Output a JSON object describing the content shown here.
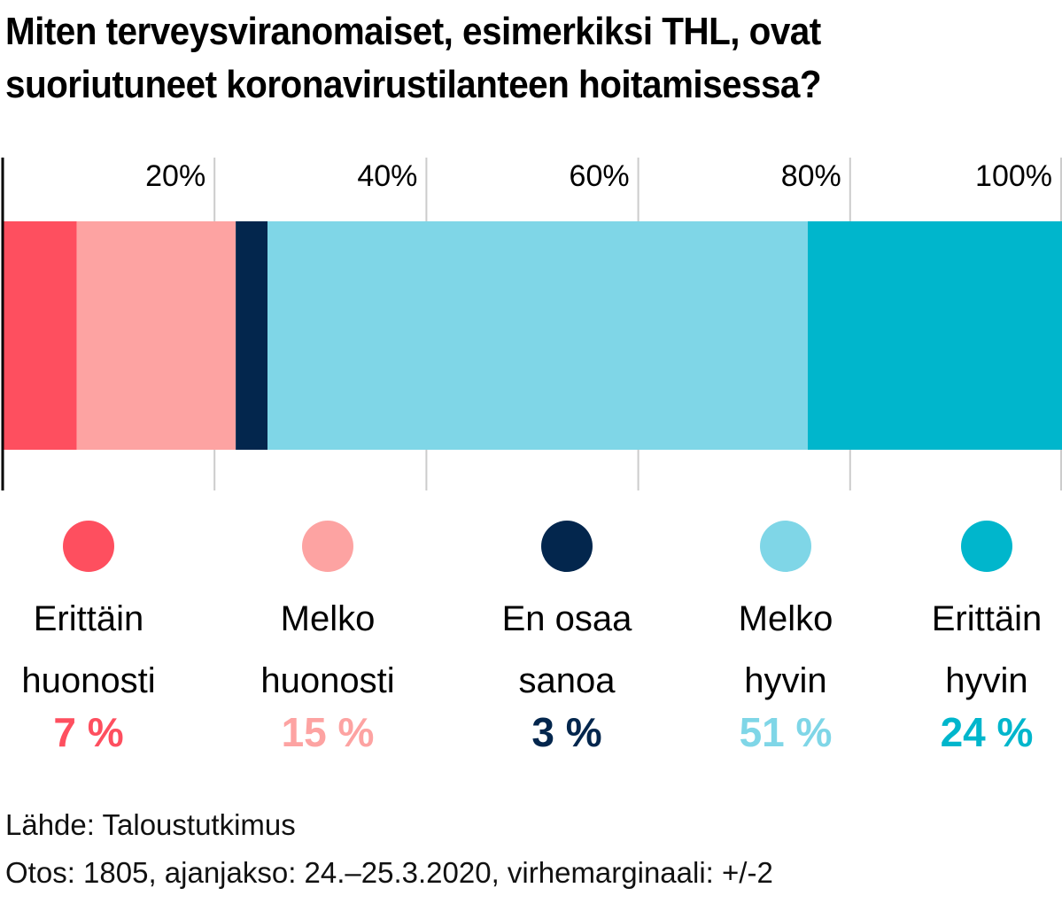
{
  "chart_data": {
    "type": "bar",
    "orientation": "horizontal-stacked",
    "title": "Miten terveysviranomaiset, esimerkiksi THL, ovat suoriutuneet koronavirustilanteen hoitamisessa?",
    "xlim": [
      0,
      100
    ],
    "ticks": [
      {
        "value": 20,
        "label": "20%"
      },
      {
        "value": 40,
        "label": "40%"
      },
      {
        "value": 60,
        "label": "60%"
      },
      {
        "value": 80,
        "label": "80%"
      },
      {
        "value": 100,
        "label": "100%"
      }
    ],
    "grid": true,
    "series": [
      {
        "name": "Erittäin huonosti",
        "label_lines": [
          "Erittäin",
          "huonosti"
        ],
        "value": 7,
        "value_label": "7 %",
        "color": "#fe4f5f"
      },
      {
        "name": "Melko huonosti",
        "label_lines": [
          "Melko",
          "huonosti"
        ],
        "value": 15,
        "value_label": "15 %",
        "color": "#fda3a2"
      },
      {
        "name": "En osaa sanoa",
        "label_lines": [
          "En osaa",
          "sanoa"
        ],
        "value": 3,
        "value_label": "3 %",
        "color": "#03264d"
      },
      {
        "name": "Melko hyvin",
        "label_lines": [
          "Melko",
          "hyvin"
        ],
        "value": 51,
        "value_label": "51 %",
        "color": "#7fd6e7"
      },
      {
        "name": "Erittäin hyvin",
        "label_lines": [
          "Erittäin",
          "hyvin"
        ],
        "value": 24,
        "value_label": "24 %",
        "color": "#00b6cc"
      }
    ],
    "legend_position": "bottom"
  },
  "footer": {
    "source": "Lähde: Taloustutkimus",
    "sample": "Otos: 1805, ajanjakso: 24.–25.3.2020, virhemarginaali: +/-2"
  }
}
